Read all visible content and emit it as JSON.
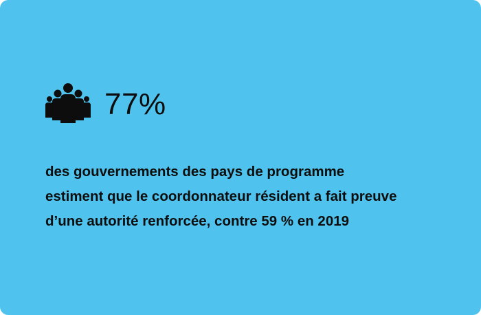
{
  "colors": {
    "background": "#4fc3ee",
    "text": "#0d0d0d",
    "icon": "#0d0d0d"
  },
  "stat": {
    "icon": "people-group-icon",
    "value": "77%"
  },
  "description": {
    "lines": [
      "des gouvernements des pays de programme",
      "estiment que le coordonnateur résident a fait preuve",
      "d’une autorité renforcée, contre 59 % en 2019"
    ]
  }
}
